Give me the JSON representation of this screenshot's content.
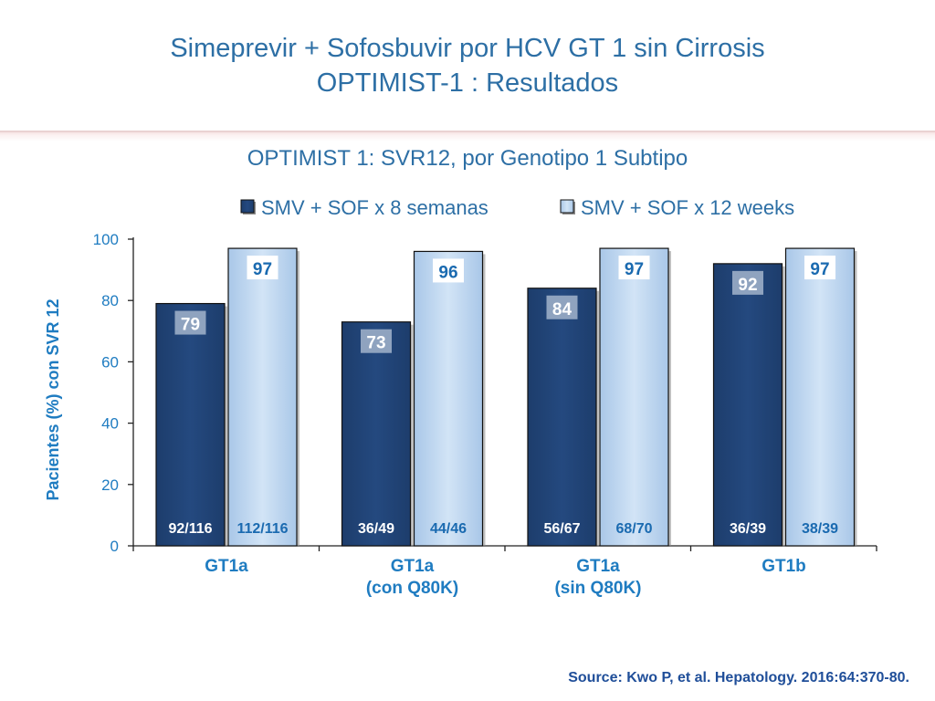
{
  "title_line1": "Simeprevir + Sofosbuvir por HCV GT 1 sin Cirrosis",
  "title_line2": "OPTIMIST-1 : Resultados",
  "source": "Source: Kwo P, et al. Hepatology. 2016:64:370-80.",
  "colors": {
    "title": "#2d6fa5",
    "axis_label": "#1f7cc1",
    "series1": "#24497f",
    "series2": "#bad4ef",
    "label_dark": "#1c3d70",
    "label_light": "#1a6ab0"
  },
  "chart_data": {
    "type": "bar",
    "title": "OPTIMIST 1: SVR12, por Genotipo 1 Subtipo",
    "ylabel": "Pacientes (%) con SVR 12",
    "xlabel": "",
    "ylim": [
      0,
      100
    ],
    "yticks": [
      "0",
      "20",
      "40",
      "60",
      "80",
      "100"
    ],
    "legend_position": "top",
    "categories": [
      [
        "GT1a"
      ],
      [
        "GT1a",
        "(con Q80K)"
      ],
      [
        "GT1a",
        "(sin Q80K)"
      ],
      [
        "GT1b"
      ]
    ],
    "series": [
      {
        "name": "SMV + SOF x 8 semanas",
        "values": [
          79,
          73,
          84,
          92
        ],
        "value_labels": [
          "79",
          "73",
          "84",
          "92"
        ],
        "counts": [
          "92/116",
          "36/49",
          "56/67",
          "36/39"
        ]
      },
      {
        "name": "SMV + SOF  x 12 weeks",
        "values": [
          97,
          96,
          97,
          97
        ],
        "value_labels": [
          "97",
          "96",
          "97",
          "97"
        ],
        "counts": [
          "112/116",
          "44/46",
          "68/70",
          "38/39"
        ]
      }
    ]
  }
}
